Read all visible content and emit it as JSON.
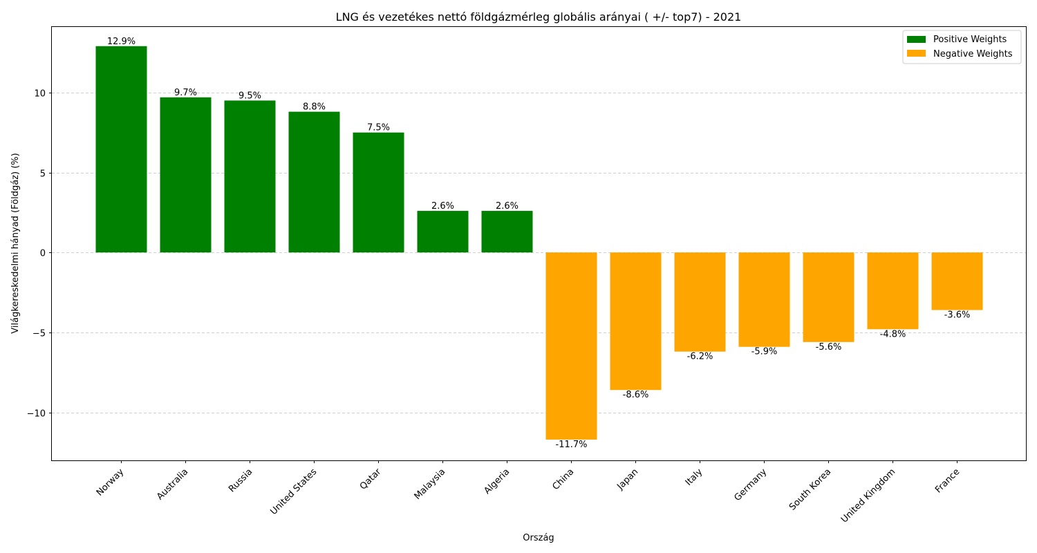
{
  "chart_data": {
    "type": "bar",
    "title": "LNG és vezetékes nettó földgázmérleg globális arányai ( +/- top7) - 2021",
    "xlabel": "Ország",
    "ylabel": "Világkereskedelmi hányad (Földgáz) (%)",
    "categories": [
      "Norway",
      "Australia",
      "Russia",
      "United States",
      "Qatar",
      "Malaysia",
      "Algeria",
      "China",
      "Japan",
      "Italy",
      "Germany",
      "South Korea",
      "United Kingdom",
      "France"
    ],
    "values": [
      12.9,
      9.7,
      9.5,
      8.8,
      7.5,
      2.6,
      2.6,
      -11.7,
      -8.6,
      -6.2,
      -5.9,
      -5.6,
      -4.8,
      -3.6
    ],
    "value_labels": [
      "12.9%",
      "9.7%",
      "9.5%",
      "8.8%",
      "7.5%",
      "2.6%",
      "2.6%",
      "-11.7%",
      "-8.6%",
      "-6.2%",
      "-5.9%",
      "-5.6%",
      "-4.8%",
      "-3.6%"
    ],
    "series": [
      {
        "name": "Positive Weights",
        "color": "#008000"
      },
      {
        "name": "Negative Weights",
        "color": "#ffa500"
      }
    ],
    "ylim": [
      -13,
      14.1
    ],
    "yticks": [
      -10,
      -5,
      0,
      5,
      10
    ],
    "ytick_labels": [
      "−10",
      "−5",
      "0",
      "5",
      "10"
    ],
    "grid": true,
    "legend": "top-right"
  }
}
